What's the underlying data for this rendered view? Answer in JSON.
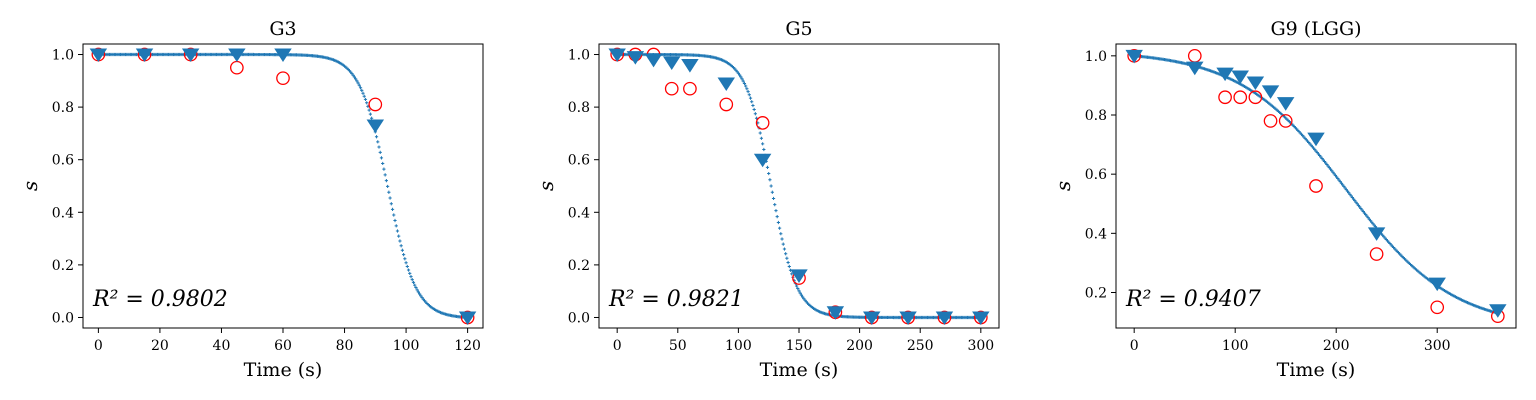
{
  "chart_data": [
    {
      "type": "scatter",
      "title": "G3",
      "xlabel": "Time (s)",
      "ylabel": "s",
      "annotation": "R² = 0.9802",
      "xlim": [
        -5,
        125
      ],
      "ylim": [
        -0.04,
        1.04
      ],
      "xticks": [
        0,
        20,
        40,
        60,
        80,
        100,
        120
      ],
      "yticks": [
        0.0,
        0.2,
        0.4,
        0.6,
        0.8,
        1.0
      ],
      "fit_curve": {
        "model": "sigmoid",
        "t0": 94,
        "k": 0.22,
        "x_range": [
          0,
          120
        ]
      },
      "series": [
        {
          "marker": "circle",
          "color": "#ff0000",
          "x": [
            0,
            15,
            30,
            45,
            60,
            90,
            120
          ],
          "y": [
            1.0,
            1.0,
            1.0,
            0.95,
            0.91,
            0.81,
            0.0
          ]
        },
        {
          "marker": "triangle-down",
          "color": "#1f77b4",
          "x": [
            0,
            15,
            30,
            45,
            60,
            90,
            120
          ],
          "y": [
            1.0,
            1.0,
            1.0,
            1.0,
            1.0,
            0.73,
            0.0
          ]
        }
      ]
    },
    {
      "type": "scatter",
      "title": "G5",
      "xlabel": "Time (s)",
      "ylabel": "s",
      "annotation": "R² = 0.9821",
      "xlim": [
        -15,
        315
      ],
      "ylim": [
        -0.04,
        1.04
      ],
      "xticks": [
        0,
        50,
        100,
        150,
        200,
        250,
        300
      ],
      "yticks": [
        0.0,
        0.2,
        0.4,
        0.6,
        0.8,
        1.0
      ],
      "fit_curve": {
        "model": "sigmoid",
        "t0": 127,
        "k": 0.095,
        "x_range": [
          0,
          300
        ]
      },
      "series": [
        {
          "marker": "circle",
          "color": "#ff0000",
          "x": [
            0,
            15,
            30,
            45,
            60,
            90,
            120,
            150,
            180,
            210,
            240,
            270,
            300
          ],
          "y": [
            1.0,
            1.0,
            1.0,
            0.87,
            0.87,
            0.81,
            0.74,
            0.15,
            0.02,
            0.0,
            0.0,
            0.0,
            0.0
          ]
        },
        {
          "marker": "triangle-down",
          "color": "#1f77b4",
          "x": [
            0,
            15,
            30,
            45,
            60,
            90,
            120,
            150,
            180,
            210,
            240,
            270,
            300
          ],
          "y": [
            1.0,
            0.99,
            0.98,
            0.97,
            0.96,
            0.89,
            0.6,
            0.16,
            0.02,
            0.0,
            0.0,
            0.0,
            0.0
          ]
        }
      ]
    },
    {
      "type": "scatter",
      "title": "G9 (LGG)",
      "xlabel": "Time (s)",
      "ylabel": "s",
      "annotation": "R² = 0.9407",
      "xlim": [
        -18,
        378
      ],
      "ylim": [
        0.08,
        1.04
      ],
      "xticks": [
        0,
        100,
        200,
        300
      ],
      "yticks": [
        0.2,
        0.4,
        0.6,
        0.8,
        1.0
      ],
      "fit_curve": {
        "model": "sigmoid",
        "t0": 210,
        "k": 0.019,
        "x_range": [
          0,
          360
        ]
      },
      "series": [
        {
          "marker": "circle",
          "color": "#ff0000",
          "x": [
            0,
            60,
            90,
            105,
            120,
            135,
            150,
            180,
            240,
            300,
            360
          ],
          "y": [
            1.0,
            1.0,
            0.86,
            0.86,
            0.86,
            0.78,
            0.78,
            0.56,
            0.33,
            0.15,
            0.12
          ]
        },
        {
          "marker": "triangle-down",
          "color": "#1f77b4",
          "x": [
            0,
            60,
            90,
            105,
            120,
            135,
            150,
            180,
            240,
            300,
            360
          ],
          "y": [
            1.0,
            0.96,
            0.94,
            0.93,
            0.91,
            0.88,
            0.84,
            0.72,
            0.4,
            0.23,
            0.14
          ]
        }
      ]
    }
  ]
}
